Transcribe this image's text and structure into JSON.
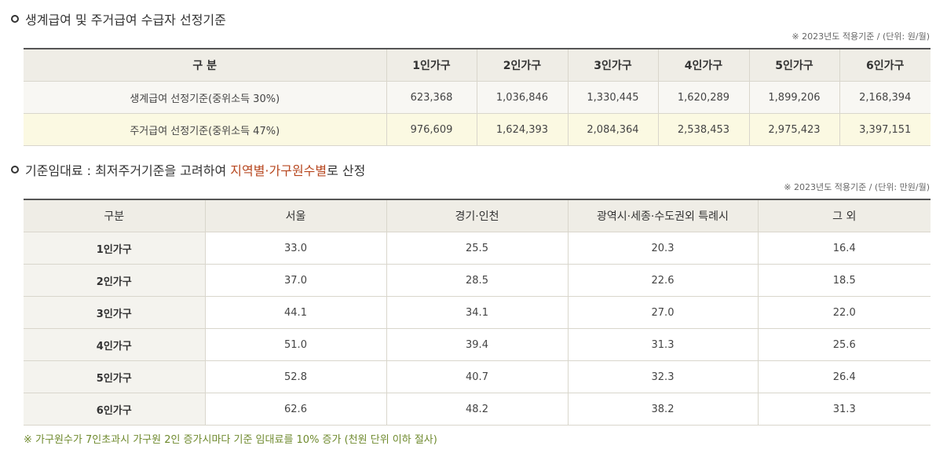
{
  "section1": {
    "title": "생계급여 및 주거급여 수급자 선정기준",
    "note": "※ 2023년도 적용기준 / (단위: 원/월)",
    "headers": [
      "구 분",
      "1인가구",
      "2인가구",
      "3인가구",
      "4인가구",
      "5인가구",
      "6인가구"
    ],
    "rows": [
      {
        "label": "생계급여 선정기준(중위소득 30%)",
        "values": [
          "623,368",
          "1,036,846",
          "1,330,445",
          "1,620,289",
          "1,899,206",
          "2,168,394"
        ]
      },
      {
        "label": "주거급여 선정기준(중위소득 47%)",
        "values": [
          "976,609",
          "1,624,393",
          "2,084,364",
          "2,538,453",
          "2,975,423",
          "3,397,151"
        ]
      }
    ]
  },
  "section2": {
    "title_prefix": "기준임대료 : 최저주거기준을 고려하여 ",
    "title_highlight": "지역별·가구원수별",
    "title_suffix": "로 산정",
    "note": "※ 2023년도 적용기준 / (단위: 만원/월)",
    "headers": [
      "구분",
      "서울",
      "경기·인천",
      "광역시·세종·수도권외 특례시",
      "그 외"
    ],
    "rows": [
      {
        "label": "1인가구",
        "values": [
          "33.0",
          "25.5",
          "20.3",
          "16.4"
        ]
      },
      {
        "label": "2인가구",
        "values": [
          "37.0",
          "28.5",
          "22.6",
          "18.5"
        ]
      },
      {
        "label": "3인가구",
        "values": [
          "44.1",
          "34.1",
          "27.0",
          "22.0"
        ]
      },
      {
        "label": "4인가구",
        "values": [
          "51.0",
          "39.4",
          "31.3",
          "25.6"
        ]
      },
      {
        "label": "5인가구",
        "values": [
          "52.8",
          "40.7",
          "32.3",
          "26.4"
        ]
      },
      {
        "label": "6인가구",
        "values": [
          "62.6",
          "48.2",
          "38.2",
          "31.3"
        ]
      }
    ]
  },
  "footnote": "※ 가구원수가 7인초과시 가구원 2인 증가시마다 기준 임대료를 10% 증가 (천원 단위 이하 절사)",
  "colors": {
    "highlight": "#b7471f",
    "footnote": "#6f8a2e",
    "row_highlight": "#fbf9e2"
  }
}
